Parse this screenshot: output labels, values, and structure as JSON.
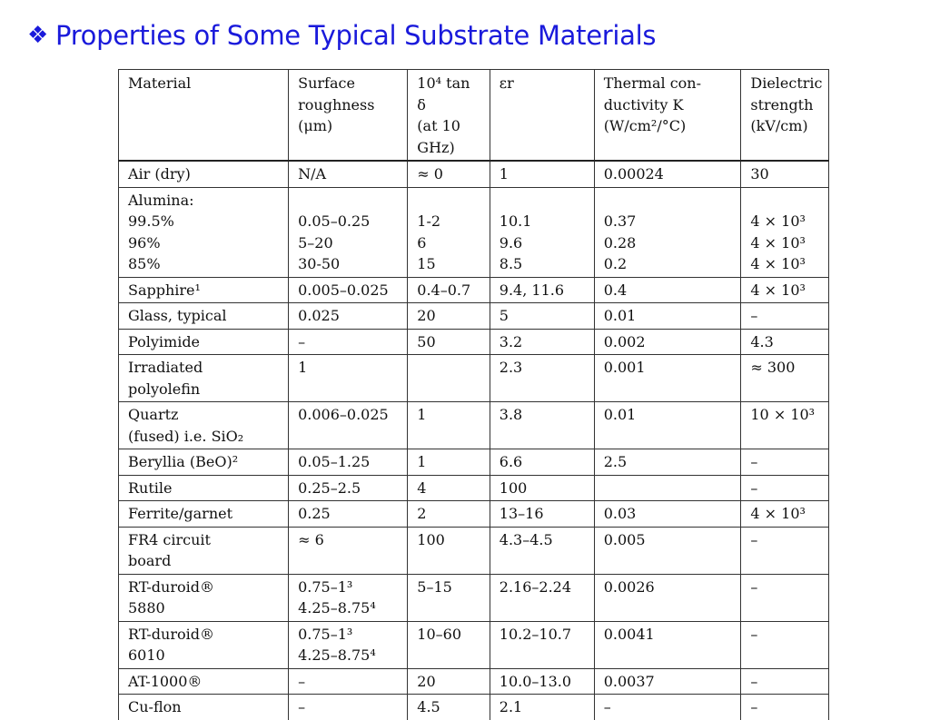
{
  "slide": {
    "bullet_icon": "❖",
    "title": "Properties  of Some Typical Substrate Materials"
  },
  "table": {
    "headers": [
      "Material",
      "Surface\nroughness\n(μm)",
      "10⁴ tan δ\n(at  10\nGHz)",
      "εr",
      "Thermal  con-\nductivity    K\n(W/cm²/°C)",
      "Dielectric\nstrength\n(kV/cm)"
    ],
    "rows": [
      [
        "Air (dry)",
        "N/A",
        "≈ 0",
        "1",
        "0.00024",
        "30"
      ],
      [
        "Alumina:\n  99.5%\n  96%\n  85%",
        "\n0.05–0.25\n5–20\n30-50",
        "\n1-2\n6\n15",
        "\n10.1\n9.6\n8.5",
        "\n0.37\n0.28\n0.2",
        "\n4 × 10³\n4 × 10³\n4 × 10³"
      ],
      [
        "Sapphire¹",
        "0.005–0.025",
        "0.4–0.7",
        "9.4, 11.6",
        "0.4",
        "4 × 10³"
      ],
      [
        "Glass, typical",
        "0.025",
        "20",
        "5",
        "0.01",
        "–"
      ],
      [
        "Polyimide",
        "–",
        "50",
        "3.2",
        "0.002",
        "4.3"
      ],
      [
        "Irradiated\npolyolefin",
        "1",
        "",
        "2.3",
        "0.001",
        "≈ 300"
      ],
      [
        "Quartz\n(fused) i.e. SiO₂",
        "0.006–0.025",
        "1",
        "3.8",
        "0.01",
        "10 × 10³"
      ],
      [
        "Beryllia (BeO)²",
        "0.05–1.25",
        "1",
        "6.6",
        "2.5",
        "–"
      ],
      [
        "Rutile",
        "0.25–2.5",
        "4",
        "100",
        "",
        "–"
      ],
      [
        "Ferrite/garnet",
        "0.25",
        "2",
        "13–16",
        "0.03",
        "4 × 10³"
      ],
      [
        "FR4 circuit\nboard",
        "≈ 6",
        "100",
        "4.3–4.5",
        "0.005",
        "–"
      ],
      [
        "RT-duroid®\n5880",
        "0.75–1³\n4.25–8.75⁴",
        "5–15",
        "2.16–2.24",
        "0.0026",
        "–"
      ],
      [
        "RT-duroid®\n6010",
        "0.75–1³\n4.25–8.75⁴",
        "10–60",
        "10.2–10.7",
        "0.0041",
        "–"
      ],
      [
        "AT-1000®",
        "–",
        "20",
        "10.0–13.0",
        "0.0037",
        "–"
      ],
      [
        "Cu-flon",
        "–",
        "4.5",
        "2.1",
        "–",
        "–"
      ]
    ]
  },
  "colors": {
    "title": "#1a1adb",
    "text": "#111111",
    "rule": "#333333"
  }
}
